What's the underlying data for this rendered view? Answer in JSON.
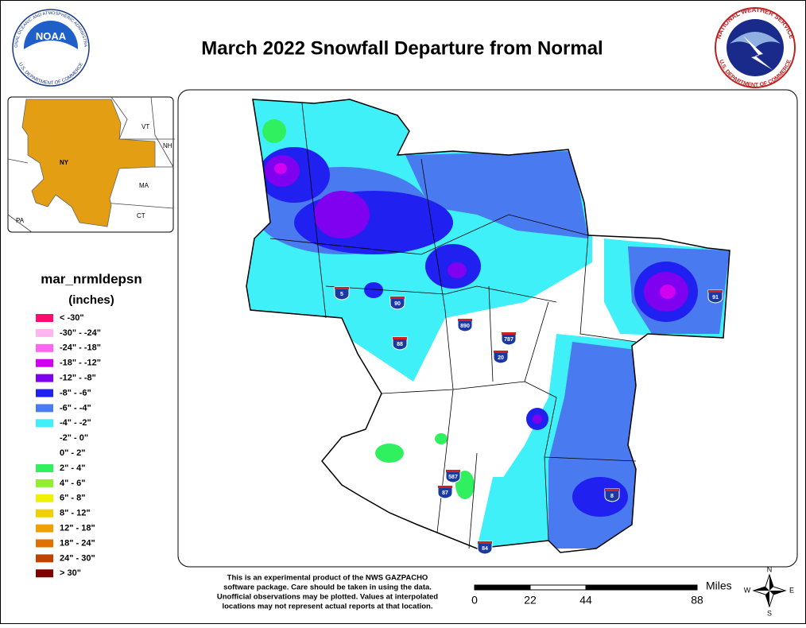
{
  "header": {
    "title": "March 2022 Snowfall Departure from Normal"
  },
  "logos": {
    "noaa": {
      "name": "NOAA",
      "ring_top": "NATIONAL OCEANIC AND ATMOSPHERIC ADMINISTRATION",
      "ring_bottom": "U.S. DEPARTMENT OF COMMERCE"
    },
    "nws": {
      "ring_top": "NATIONAL WEATHER SERVICE",
      "ring_bottom": "U.S. DEPARTMENT OF COMMERCE"
    }
  },
  "inset": {
    "labels": [
      "VT",
      "NH",
      "NY",
      "MA",
      "CT",
      "PA"
    ]
  },
  "legend": {
    "title": "mar_nrmldepsn",
    "units": "(inches)",
    "items": [
      {
        "label": "< -30\"",
        "color": "#ff0a6e"
      },
      {
        "label": "-30\" - -24\"",
        "color": "#ffb3f0"
      },
      {
        "label": "-24\" - -18\"",
        "color": "#ff66f0"
      },
      {
        "label": "-18\" - -12\"",
        "color": "#d000f0"
      },
      {
        "label": "-12\" - -8\"",
        "color": "#8000f0"
      },
      {
        "label": "-8\" - -6\"",
        "color": "#2020f0"
      },
      {
        "label": "-6\" - -4\"",
        "color": "#4a7af0"
      },
      {
        "label": "-4\" - -2\"",
        "color": "#40f0f8"
      },
      {
        "label": "-2\" - 0\"",
        "color": "#ffffff"
      },
      {
        "label": "0\" - 2\"",
        "color": "#ffffff"
      },
      {
        "label": "2\" - 4\"",
        "color": "#30f060"
      },
      {
        "label": "4\" - 6\"",
        "color": "#90f030"
      },
      {
        "label": "6\" - 8\"",
        "color": "#f0f000"
      },
      {
        "label": "8\" - 12\"",
        "color": "#f0d000"
      },
      {
        "label": "12\" - 18\"",
        "color": "#f0a000"
      },
      {
        "label": "18\" - 24\"",
        "color": "#e07000"
      },
      {
        "label": "24\" - 30\"",
        "color": "#c04000"
      },
      {
        "label": "> 30\"",
        "color": "#800000"
      }
    ]
  },
  "highways": [
    "5",
    "90",
    "890",
    "787",
    "88",
    "20",
    "587",
    "87",
    "84",
    "91",
    "8"
  ],
  "footnote": [
    "This is an experimental product of the NWS GAZPACHO",
    "software package. Care should be taken in using the data.",
    "Unofficial observations may be plotted. Values at interpolated",
    "locations may not represent actual reports at that location."
  ],
  "scale": {
    "unit": "Miles",
    "ticks": [
      0,
      22,
      44,
      88
    ]
  },
  "compass": [
    "N",
    "E",
    "S",
    "W"
  ]
}
